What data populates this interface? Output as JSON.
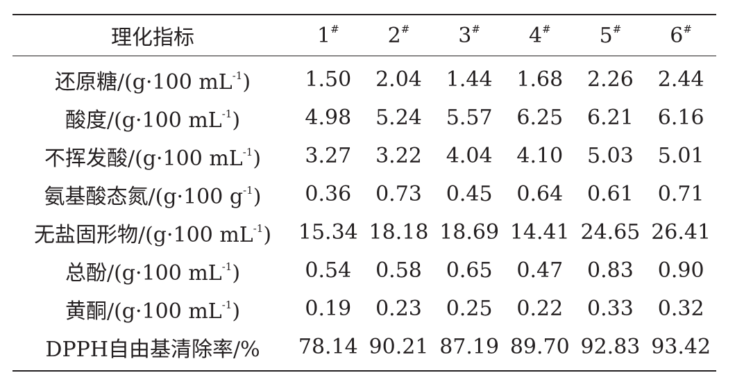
{
  "table": {
    "header": {
      "indicator": "理化指标",
      "samples": [
        {
          "num": "1",
          "mark": "#"
        },
        {
          "num": "2",
          "mark": "#"
        },
        {
          "num": "3",
          "mark": "#"
        },
        {
          "num": "4",
          "mark": "#"
        },
        {
          "num": "5",
          "mark": "#"
        },
        {
          "num": "6",
          "mark": "#"
        }
      ]
    },
    "rows": [
      {
        "name": "还原糖/(g·100 mL",
        "exp": "-1",
        "close": ")",
        "values": [
          "1.50",
          "2.04",
          "1.44",
          "1.68",
          "2.26",
          "2.44"
        ]
      },
      {
        "name": "酸度/(g·100 mL",
        "exp": "-1",
        "close": ")",
        "values": [
          "4.98",
          "5.24",
          "5.57",
          "6.25",
          "6.21",
          "6.16"
        ]
      },
      {
        "name": "不挥发酸/(g·100 mL",
        "exp": "-1",
        "close": ")",
        "values": [
          "3.27",
          "3.22",
          "4.04",
          "4.10",
          "5.03",
          "5.01"
        ]
      },
      {
        "name": "氨基酸态氮/(g·100 g",
        "exp": "-1",
        "close": ")",
        "values": [
          "0.36",
          "0.73",
          "0.45",
          "0.64",
          "0.61",
          "0.71"
        ]
      },
      {
        "name": "无盐固形物/(g·100 mL",
        "exp": "-1",
        "close": ")",
        "values": [
          "15.34",
          "18.18",
          "18.69",
          "14.41",
          "24.65",
          "26.41"
        ]
      },
      {
        "name": "总酚/(g·100 mL",
        "exp": "-1",
        "close": ")",
        "values": [
          "0.54",
          "0.58",
          "0.65",
          "0.47",
          "0.83",
          "0.90"
        ]
      },
      {
        "name": "黄酮/(g·100 mL",
        "exp": "-1",
        "close": ")",
        "values": [
          "0.19",
          "0.23",
          "0.25",
          "0.22",
          "0.33",
          "0.32"
        ]
      },
      {
        "name": "DPPH自由基清除率/%",
        "exp": "",
        "close": "",
        "values": [
          "78.14",
          "90.21",
          "87.19",
          "89.70",
          "92.83",
          "93.42"
        ]
      }
    ]
  }
}
